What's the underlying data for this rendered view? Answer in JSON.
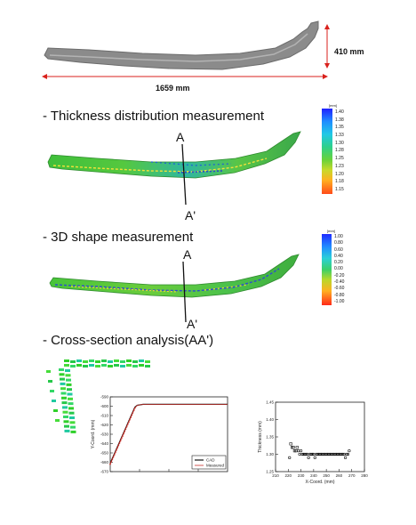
{
  "dimensions": {
    "height": "410 mm",
    "width": "1659 mm"
  },
  "sections": {
    "thickness": {
      "title": "- Thickness distribution measurement",
      "point_a": "A",
      "point_a_prime": "A'"
    },
    "shape": {
      "title": "- 3D shape measurement",
      "point_a": "A",
      "point_a_prime": "A'"
    },
    "cross": {
      "title": "- Cross-section analysis(AA')"
    }
  },
  "colorbars": {
    "thickness": {
      "unit": "[mm]",
      "ticks": [
        "1.40",
        "1.38",
        "1.35",
        "1.33",
        "1.30",
        "1.28",
        "1.25",
        "1.23",
        "1.20",
        "1.18",
        "1.15"
      ]
    },
    "shape": {
      "unit": "[mm]",
      "ticks": [
        "1.00",
        "0.80",
        "0.60",
        "0.40",
        "0.20",
        "0.00",
        "-0.20",
        "-0.40",
        "-0.60",
        "-0.80",
        "-1.00"
      ]
    }
  },
  "chart_data": [
    {
      "type": "line",
      "ylabel": "Y-Coord. (mm)",
      "yticks": [
        "-590",
        "-600",
        "-610",
        "-620",
        "-630",
        "-640",
        "-650",
        "-660",
        "-670"
      ],
      "ylim": [
        -670,
        -590
      ],
      "legend": [
        "CAD",
        "Measured"
      ],
      "legend_placement": "bottom-right",
      "series": [
        {
          "name": "CAD",
          "x": [
            0,
            21,
            23,
            28,
            100
          ],
          "y": [
            -661,
            -601,
            -599,
            -598,
            -598
          ]
        },
        {
          "name": "Measured",
          "x": [
            0,
            21,
            23,
            28,
            100
          ],
          "y": [
            -662,
            -602,
            -599,
            -598,
            -598
          ]
        }
      ]
    },
    {
      "type": "scatter",
      "xlabel": "X-Coord. (mm)",
      "ylabel": "Thickness (mm)",
      "xticks": [
        "210",
        "220",
        "230",
        "240",
        "250",
        "260",
        "270",
        "280"
      ],
      "yticks": [
        "1.45",
        "1.40",
        "1.35",
        "1.30",
        "1.25"
      ],
      "xlim": [
        210,
        280
      ],
      "ylim": [
        1.25,
        1.45
      ],
      "points": [
        [
          221,
          1.29
        ],
        [
          222,
          1.33
        ],
        [
          223,
          1.32
        ],
        [
          224,
          1.32
        ],
        [
          225,
          1.31
        ],
        [
          226,
          1.31
        ],
        [
          227,
          1.32
        ],
        [
          228,
          1.31
        ],
        [
          229,
          1.3
        ],
        [
          230,
          1.31
        ],
        [
          231,
          1.3
        ],
        [
          232,
          1.3
        ],
        [
          233,
          1.3
        ],
        [
          234,
          1.3
        ],
        [
          235,
          1.3
        ],
        [
          236,
          1.29
        ],
        [
          237,
          1.3
        ],
        [
          238,
          1.3
        ],
        [
          239,
          1.3
        ],
        [
          240,
          1.3
        ],
        [
          241,
          1.29
        ],
        [
          242,
          1.3
        ],
        [
          243,
          1.3
        ],
        [
          244,
          1.3
        ],
        [
          245,
          1.3
        ],
        [
          246,
          1.3
        ],
        [
          247,
          1.3
        ],
        [
          248,
          1.3
        ],
        [
          249,
          1.3
        ],
        [
          250,
          1.3
        ],
        [
          251,
          1.3
        ],
        [
          252,
          1.3
        ],
        [
          253,
          1.3
        ],
        [
          254,
          1.3
        ],
        [
          255,
          1.3
        ],
        [
          256,
          1.3
        ],
        [
          257,
          1.3
        ],
        [
          258,
          1.3
        ],
        [
          259,
          1.3
        ],
        [
          260,
          1.3
        ],
        [
          261,
          1.3
        ],
        [
          262,
          1.3
        ],
        [
          263,
          1.3
        ],
        [
          264,
          1.3
        ],
        [
          265,
          1.29
        ],
        [
          266,
          1.3
        ],
        [
          267,
          1.3
        ],
        [
          268,
          1.31
        ]
      ]
    }
  ]
}
